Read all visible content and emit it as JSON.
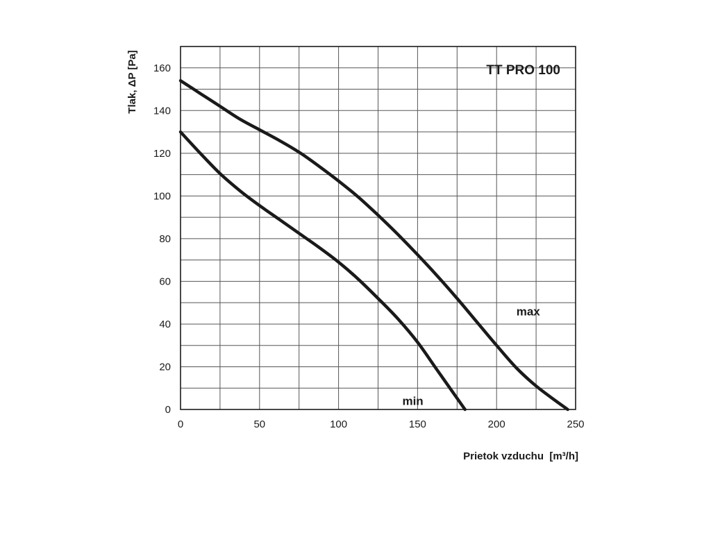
{
  "chart_data": {
    "type": "line",
    "title": "TT PRO 100",
    "xlabel": "Prietok vzduchu  [m³/h]",
    "ylabel": "Tlak, ΔP [Pa]",
    "xlim": [
      0,
      250
    ],
    "ylim": [
      0,
      170
    ],
    "xticks": [
      0,
      50,
      100,
      150,
      200,
      250
    ],
    "yticks": [
      0,
      20,
      40,
      60,
      80,
      100,
      120,
      140,
      160
    ],
    "x_minor_step": 25,
    "y_minor_step": 10,
    "grid": true,
    "series": [
      {
        "name": "max",
        "x": [
          0,
          12.5,
          25,
          37.5,
          50,
          62.5,
          75,
          87.5,
          100,
          112.5,
          125,
          137.5,
          150,
          162.5,
          175,
          187.5,
          200,
          212.5,
          225,
          237.5,
          245
        ],
        "y": [
          154,
          148,
          142,
          136,
          131,
          126,
          120.5,
          114,
          107,
          99.5,
          91,
          82,
          72.5,
          62.5,
          52,
          41,
          30,
          19.5,
          11,
          4,
          0
        ]
      },
      {
        "name": "min",
        "x": [
          0,
          12.5,
          25,
          37.5,
          50,
          62.5,
          75,
          87.5,
          100,
          112.5,
          125,
          137.5,
          150,
          160,
          170,
          180
        ],
        "y": [
          130,
          120,
          110.5,
          102.5,
          95.5,
          89,
          82.5,
          76,
          69,
          61,
          52,
          42.5,
          31.5,
          21,
          10.5,
          0
        ]
      }
    ]
  }
}
